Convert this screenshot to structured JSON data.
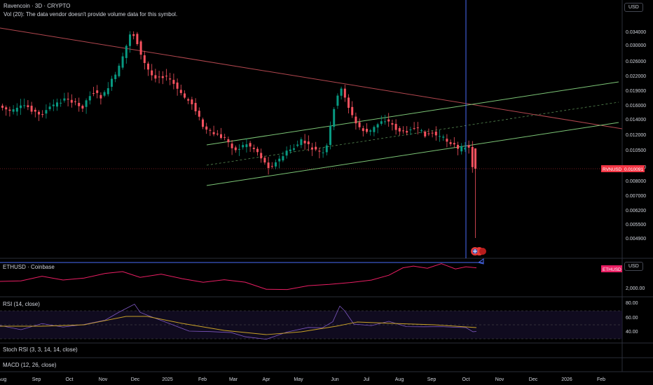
{
  "header": {
    "symbol_title": "Ravencoin · 3D · CRYPTO",
    "volume_note": "Vol (20): The data vendor doesn't provide volume data for this symbol."
  },
  "currency_button": "USD",
  "main_price_axis": [
    "0.034000",
    "0.030000",
    "0.026000",
    "0.022000",
    "0.019000",
    "0.016000",
    "0.014000",
    "0.012000",
    "0.010500",
    "0.009000",
    "0.008000",
    "0.007000",
    "0.006200",
    "0.005500",
    "0.004900"
  ],
  "last_price": {
    "symbol": "RVNUSD",
    "value": "0.010091",
    "color": "#f23645"
  },
  "panes": {
    "compare": {
      "label": "ETHUSD · Coinbase",
      "badge": "ETHUSD",
      "axis_label": "2,000.00",
      "currency": "USD",
      "color": "#e91e63"
    },
    "rsi": {
      "label": "RSI (14, close)",
      "levels": [
        "80.00",
        "60.00",
        "40.00"
      ]
    },
    "stoch": {
      "label": "Stoch RSI (3, 3, 14, 14, close)"
    },
    "macd": {
      "label": "MACD (12, 26, close)"
    }
  },
  "time_axis": [
    "Aug",
    "Sep",
    "Oct",
    "Nov",
    "Dec",
    "2025",
    "Feb",
    "Mar",
    "Apr",
    "May",
    "Jun",
    "Jul",
    "Aug",
    "Sep",
    "Oct",
    "Nov",
    "Dec",
    "2026",
    "Feb"
  ],
  "colors": {
    "up": "#089981",
    "down": "#f7525f",
    "channel": "#7cc576",
    "trend": "#b2474f",
    "cursor": "#4a6cf7",
    "rsi": "#7e57c2",
    "rsi_ma": "#c9a227"
  }
}
